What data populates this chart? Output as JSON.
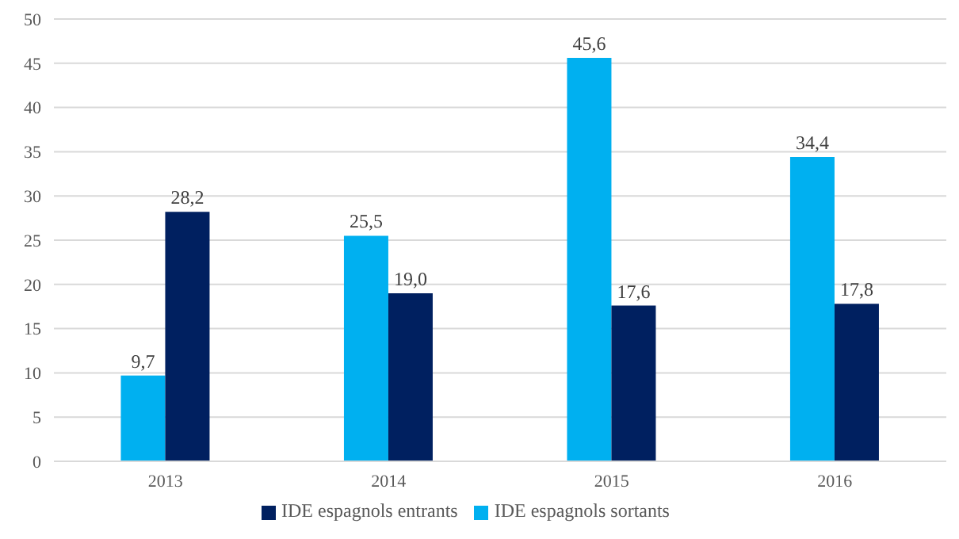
{
  "chart_data": {
    "type": "bar",
    "categories": [
      "2013",
      "2014",
      "2015",
      "2016"
    ],
    "series": [
      {
        "name": "IDE espagnols sortants",
        "color": "#00b0f0",
        "values": [
          9.7,
          25.5,
          45.6,
          34.4
        ],
        "value_labels": [
          "9,7",
          "25,5",
          "45,6",
          "34,4"
        ]
      },
      {
        "name": "IDE espagnols entrants",
        "color": "#002060",
        "values": [
          28.2,
          19.0,
          17.6,
          17.8
        ],
        "value_labels": [
          "28,2",
          "19,0",
          "17,6",
          "17,8"
        ]
      }
    ],
    "ylim": [
      0,
      50
    ],
    "yticks": [
      0,
      5,
      10,
      15,
      20,
      25,
      30,
      35,
      40,
      45,
      50
    ],
    "grid": "y",
    "legend": "bottom"
  }
}
